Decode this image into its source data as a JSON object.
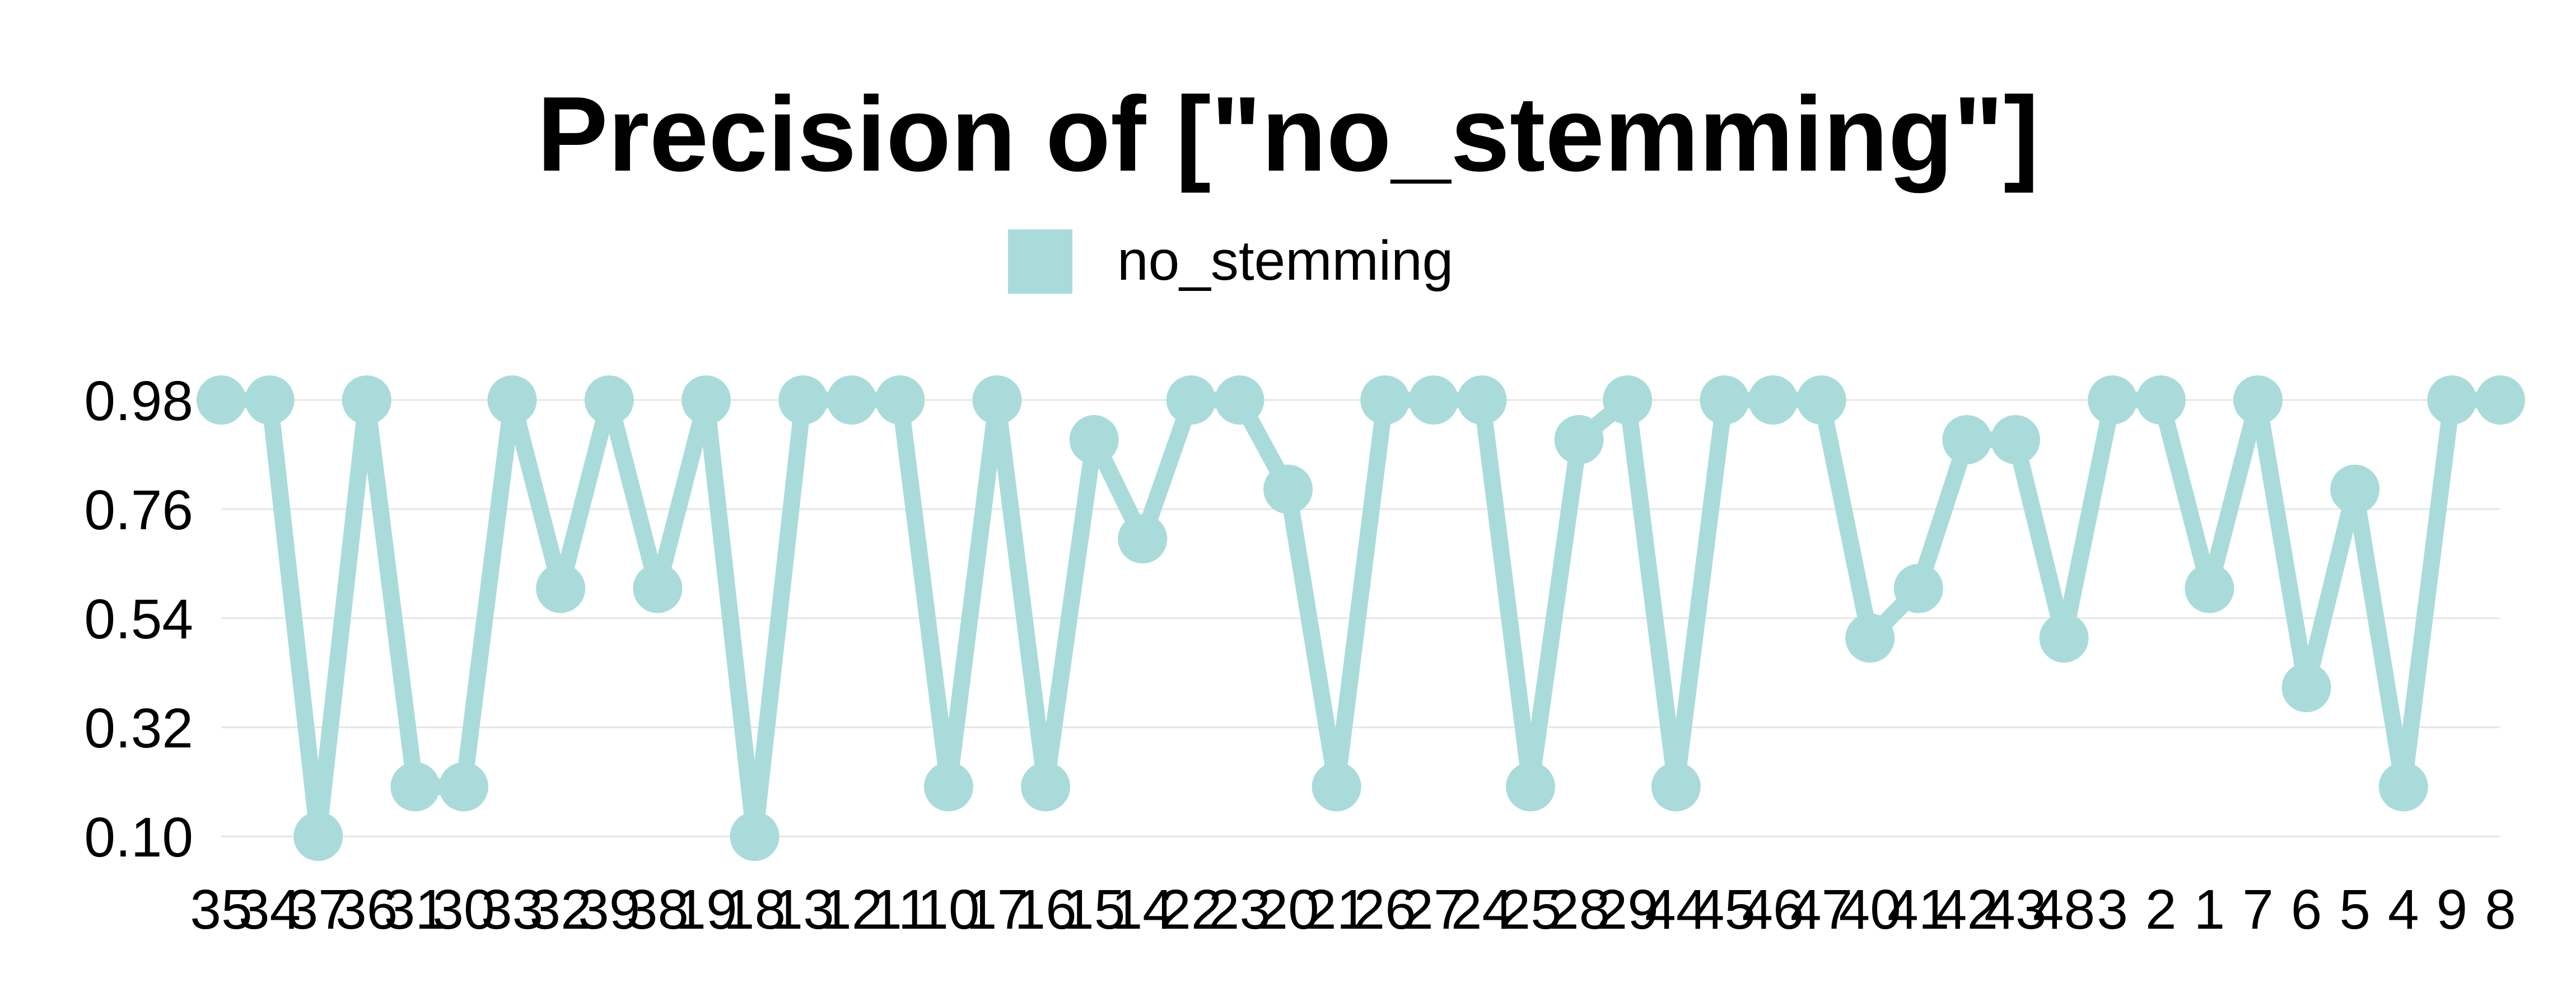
{
  "chart_data": {
    "type": "line",
    "title": "Precision of [\"no_stemming\"]",
    "xlabel": "",
    "ylabel": "",
    "legend_position": "top-center",
    "grid": true,
    "ylim": [
      0.1,
      0.98
    ],
    "yticks": [
      "0.98",
      "0.76",
      "0.54",
      "0.32",
      "0.10"
    ],
    "color": "#aadbdb",
    "categories": [
      "35",
      "34",
      "37",
      "36",
      "31",
      "30",
      "33",
      "32",
      "39",
      "38",
      "19",
      "18",
      "13",
      "12",
      "11",
      "10",
      "17",
      "16",
      "15",
      "14",
      "22",
      "23",
      "20",
      "21",
      "26",
      "27",
      "24",
      "25",
      "28",
      "29",
      "44",
      "45",
      "46",
      "47",
      "40",
      "41",
      "42",
      "43",
      "48",
      "3",
      "2",
      "1",
      "7",
      "6",
      "5",
      "4",
      "9",
      "8"
    ],
    "series": [
      {
        "name": "no_stemming",
        "values": [
          0.98,
          0.98,
          0.1,
          0.98,
          0.2,
          0.2,
          0.98,
          0.6,
          0.98,
          0.6,
          0.98,
          0.1,
          0.98,
          0.98,
          0.98,
          0.2,
          0.98,
          0.2,
          0.9,
          0.7,
          0.98,
          0.98,
          0.8,
          0.2,
          0.98,
          0.98,
          0.98,
          0.2,
          0.9,
          0.98,
          0.2,
          0.98,
          0.98,
          0.98,
          0.5,
          0.6,
          0.9,
          0.9,
          0.5,
          0.98,
          0.98,
          0.6,
          0.98,
          0.4,
          0.8,
          0.2,
          0.98,
          0.98
        ]
      }
    ]
  }
}
